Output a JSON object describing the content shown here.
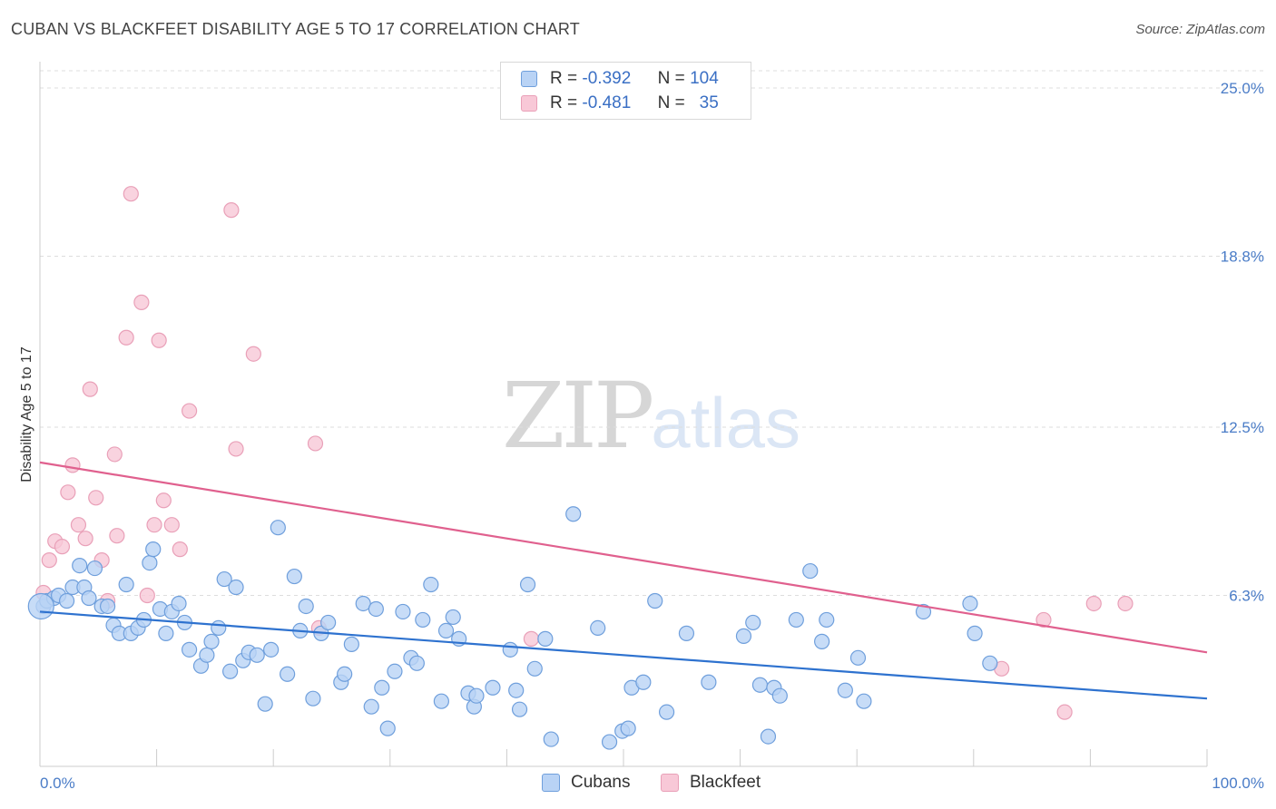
{
  "title": "CUBAN VS BLACKFEET DISABILITY AGE 5 TO 17 CORRELATION CHART",
  "source": "Source: ZipAtlas.com",
  "watermark": {
    "zip": "ZIP",
    "atlas": "atlas"
  },
  "colors": {
    "cubans_fill": "#b9d3f5",
    "cubans_stroke": "#6f9fdc",
    "cubans_line": "#2e72cf",
    "blackfeet_fill": "#f8c8d7",
    "blackfeet_stroke": "#e9a0b8",
    "blackfeet_line": "#e0608e",
    "grid": "#dddddd",
    "tick_text": "#4a7cc7"
  },
  "legend": {
    "rows": [
      {
        "r_label": "R =",
        "r_value": "-0.392",
        "n_label": "N =",
        "n_value": "104"
      },
      {
        "r_label": "R =",
        "r_value": "-0.481",
        "n_label": "N =",
        "n_value": "35"
      }
    ]
  },
  "chart_data": {
    "type": "scatter",
    "ylabel": "Disability Age 5 to 17",
    "xlabel": "",
    "xlim": [
      0,
      100
    ],
    "ylim": [
      0,
      25
    ],
    "x_tick_labels": [
      "0.0%",
      "100.0%"
    ],
    "y_tick_labels": [
      "6.3%",
      "12.5%",
      "18.8%",
      "25.0%"
    ],
    "y_ticks": [
      6.3,
      12.5,
      18.8,
      25.0
    ],
    "grid": true,
    "legend_position": "bottom-center",
    "series": [
      {
        "name": "Cubans",
        "trend": {
          "x": [
            0,
            100
          ],
          "y": [
            5.7,
            2.5
          ]
        },
        "points": [
          [
            0.3,
            5.9
          ],
          [
            0.6,
            6.1
          ],
          [
            1.2,
            6.2
          ],
          [
            1.6,
            6.3
          ],
          [
            2.3,
            6.1
          ],
          [
            2.8,
            6.6
          ],
          [
            3.4,
            7.4
          ],
          [
            3.8,
            6.6
          ],
          [
            4.2,
            6.2
          ],
          [
            4.7,
            7.3
          ],
          [
            5.3,
            5.9
          ],
          [
            5.8,
            5.9
          ],
          [
            6.3,
            5.2
          ],
          [
            6.8,
            4.9
          ],
          [
            7.4,
            6.7
          ],
          [
            7.8,
            4.9
          ],
          [
            8.4,
            5.1
          ],
          [
            8.9,
            5.4
          ],
          [
            9.4,
            7.5
          ],
          [
            9.7,
            8.0
          ],
          [
            10.3,
            5.8
          ],
          [
            10.8,
            4.9
          ],
          [
            11.3,
            5.7
          ],
          [
            11.9,
            6.0
          ],
          [
            12.4,
            5.3
          ],
          [
            12.8,
            4.3
          ],
          [
            13.8,
            3.7
          ],
          [
            14.3,
            4.1
          ],
          [
            14.7,
            4.6
          ],
          [
            15.3,
            5.1
          ],
          [
            15.8,
            6.9
          ],
          [
            16.3,
            3.5
          ],
          [
            16.8,
            6.6
          ],
          [
            17.4,
            3.9
          ],
          [
            17.9,
            4.2
          ],
          [
            18.6,
            4.1
          ],
          [
            19.3,
            2.3
          ],
          [
            19.8,
            4.3
          ],
          [
            20.4,
            8.8
          ],
          [
            21.2,
            3.4
          ],
          [
            21.8,
            7.0
          ],
          [
            22.3,
            5.0
          ],
          [
            22.8,
            5.9
          ],
          [
            23.4,
            2.5
          ],
          [
            24.1,
            4.9
          ],
          [
            24.7,
            5.3
          ],
          [
            25.8,
            3.1
          ],
          [
            26.1,
            3.4
          ],
          [
            26.7,
            4.5
          ],
          [
            27.7,
            6.0
          ],
          [
            28.4,
            2.2
          ],
          [
            28.8,
            5.8
          ],
          [
            29.3,
            2.9
          ],
          [
            29.8,
            1.4
          ],
          [
            30.4,
            3.5
          ],
          [
            31.1,
            5.7
          ],
          [
            31.8,
            4.0
          ],
          [
            32.3,
            3.8
          ],
          [
            32.8,
            5.4
          ],
          [
            33.5,
            6.7
          ],
          [
            34.4,
            2.4
          ],
          [
            34.8,
            5.0
          ],
          [
            35.4,
            5.5
          ],
          [
            35.9,
            4.7
          ],
          [
            36.7,
            2.7
          ],
          [
            37.2,
            2.2
          ],
          [
            37.4,
            2.6
          ],
          [
            38.8,
            2.9
          ],
          [
            40.3,
            4.3
          ],
          [
            40.8,
            2.8
          ],
          [
            41.1,
            2.1
          ],
          [
            41.8,
            6.7
          ],
          [
            42.4,
            3.6
          ],
          [
            43.3,
            4.7
          ],
          [
            43.8,
            1.0
          ],
          [
            45.7,
            9.3
          ],
          [
            47.8,
            5.1
          ],
          [
            48.8,
            0.9
          ],
          [
            49.9,
            1.3
          ],
          [
            50.4,
            1.4
          ],
          [
            50.7,
            2.9
          ],
          [
            51.7,
            3.1
          ],
          [
            52.7,
            6.1
          ],
          [
            53.7,
            2.0
          ],
          [
            55.4,
            4.9
          ],
          [
            57.3,
            3.1
          ],
          [
            60.3,
            4.8
          ],
          [
            61.1,
            5.3
          ],
          [
            61.7,
            3.0
          ],
          [
            62.4,
            1.1
          ],
          [
            62.9,
            2.9
          ],
          [
            63.4,
            2.6
          ],
          [
            64.8,
            5.4
          ],
          [
            66.0,
            7.2
          ],
          [
            67.0,
            4.6
          ],
          [
            67.4,
            5.4
          ],
          [
            69.0,
            2.8
          ],
          [
            70.1,
            4.0
          ],
          [
            70.6,
            2.4
          ],
          [
            75.7,
            5.7
          ],
          [
            79.7,
            6.0
          ],
          [
            80.1,
            4.9
          ],
          [
            81.4,
            3.8
          ],
          [
            0.1,
            5.9
          ]
        ]
      },
      {
        "name": "Blackfeet",
        "trend": {
          "x": [
            0,
            100
          ],
          "y": [
            11.2,
            4.2
          ]
        },
        "points": [
          [
            0.3,
            6.4
          ],
          [
            0.8,
            7.6
          ],
          [
            1.3,
            8.3
          ],
          [
            1.9,
            8.1
          ],
          [
            2.4,
            10.1
          ],
          [
            2.8,
            11.1
          ],
          [
            3.3,
            8.9
          ],
          [
            3.9,
            8.4
          ],
          [
            4.3,
            13.9
          ],
          [
            4.8,
            9.9
          ],
          [
            5.3,
            7.6
          ],
          [
            5.8,
            6.1
          ],
          [
            6.4,
            11.5
          ],
          [
            6.6,
            8.5
          ],
          [
            7.4,
            15.8
          ],
          [
            7.8,
            21.1
          ],
          [
            8.7,
            17.1
          ],
          [
            9.2,
            6.3
          ],
          [
            9.8,
            8.9
          ],
          [
            10.2,
            15.7
          ],
          [
            10.6,
            9.8
          ],
          [
            11.3,
            8.9
          ],
          [
            12.0,
            8.0
          ],
          [
            12.8,
            13.1
          ],
          [
            16.4,
            20.5
          ],
          [
            16.8,
            11.7
          ],
          [
            18.3,
            15.2
          ],
          [
            23.6,
            11.9
          ],
          [
            23.9,
            5.1
          ],
          [
            42.1,
            4.7
          ],
          [
            82.4,
            3.6
          ],
          [
            86.0,
            5.4
          ],
          [
            87.8,
            2.0
          ],
          [
            90.3,
            6.0
          ],
          [
            93.0,
            6.0
          ]
        ]
      }
    ]
  },
  "bottom_legend": {
    "items": [
      {
        "label": "Cubans"
      },
      {
        "label": "Blackfeet"
      }
    ]
  }
}
